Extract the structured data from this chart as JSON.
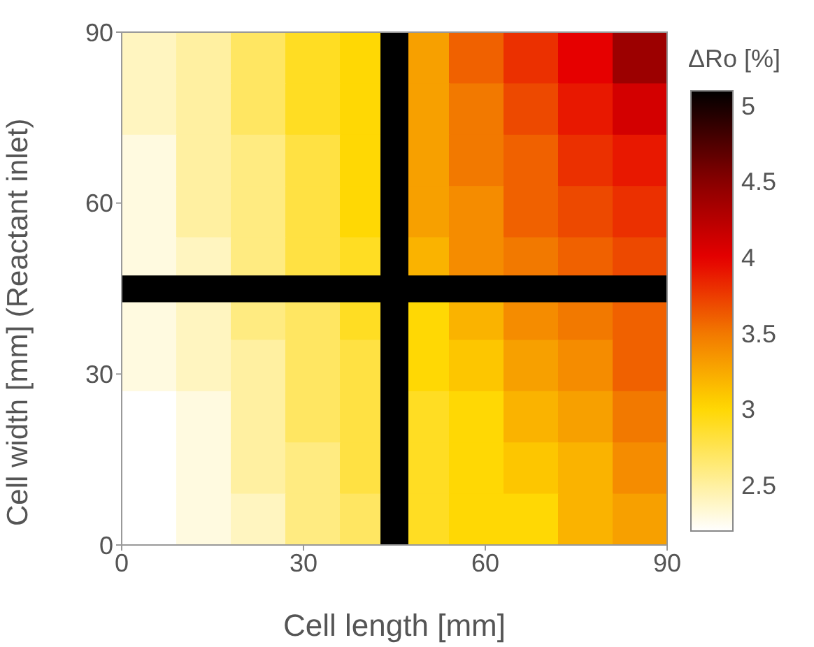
{
  "chart_data": {
    "type": "heatmap",
    "xlabel": "Cell length [mm]",
    "ylabel": "Cell width [mm] (Reactant inlet)",
    "clabel": "ΔRo [%]",
    "x": [
      4.5,
      13.5,
      22.5,
      31.5,
      40.5,
      49.5,
      58.5,
      67.5,
      76.5,
      85.5
    ],
    "y": [
      85.5,
      76.5,
      67.5,
      58.5,
      49.5,
      40.5,
      31.5,
      22.5,
      13.5,
      4.5
    ],
    "xlim": [
      0,
      90
    ],
    "ylim": [
      0,
      90
    ],
    "xticks": [
      0,
      30,
      60,
      90
    ],
    "yticks": [
      0,
      30,
      60,
      90
    ],
    "bands": [
      {
        "axis": "x",
        "from": 42.7,
        "to": 47.3,
        "color": "#000000"
      },
      {
        "axis": "y",
        "from": 42.6,
        "to": 47.3,
        "color": "#000000"
      }
    ],
    "clim": [
      2.2,
      5.1
    ],
    "cticks": [
      2.5,
      3,
      3.5,
      4,
      4.5,
      5
    ],
    "cells": [
      [
        2.4,
        2.5,
        2.7,
        2.9,
        3.0,
        3.3,
        3.6,
        3.8,
        4.0,
        4.4
      ],
      [
        2.4,
        2.5,
        2.7,
        2.9,
        3.0,
        3.3,
        3.5,
        3.7,
        3.9,
        4.1
      ],
      [
        2.3,
        2.5,
        2.6,
        2.8,
        3.0,
        3.3,
        3.5,
        3.6,
        3.8,
        3.9
      ],
      [
        2.3,
        2.5,
        2.6,
        2.8,
        3.0,
        3.3,
        3.4,
        3.6,
        3.7,
        3.8
      ],
      [
        2.3,
        2.4,
        2.6,
        2.8,
        2.9,
        3.2,
        3.4,
        3.5,
        3.6,
        3.7
      ],
      [
        2.3,
        2.4,
        2.6,
        2.7,
        2.9,
        3.0,
        3.2,
        3.4,
        3.5,
        3.6
      ],
      [
        2.3,
        2.4,
        2.5,
        2.7,
        2.8,
        3.0,
        3.1,
        3.3,
        3.4,
        3.6
      ],
      [
        2.2,
        2.3,
        2.5,
        2.7,
        2.8,
        2.9,
        3.0,
        3.2,
        3.3,
        3.5
      ],
      [
        2.2,
        2.3,
        2.5,
        2.6,
        2.8,
        2.9,
        3.0,
        3.1,
        3.2,
        3.4
      ],
      [
        2.2,
        2.3,
        2.4,
        2.6,
        2.7,
        2.9,
        3.0,
        3.0,
        3.2,
        3.3
      ]
    ]
  }
}
